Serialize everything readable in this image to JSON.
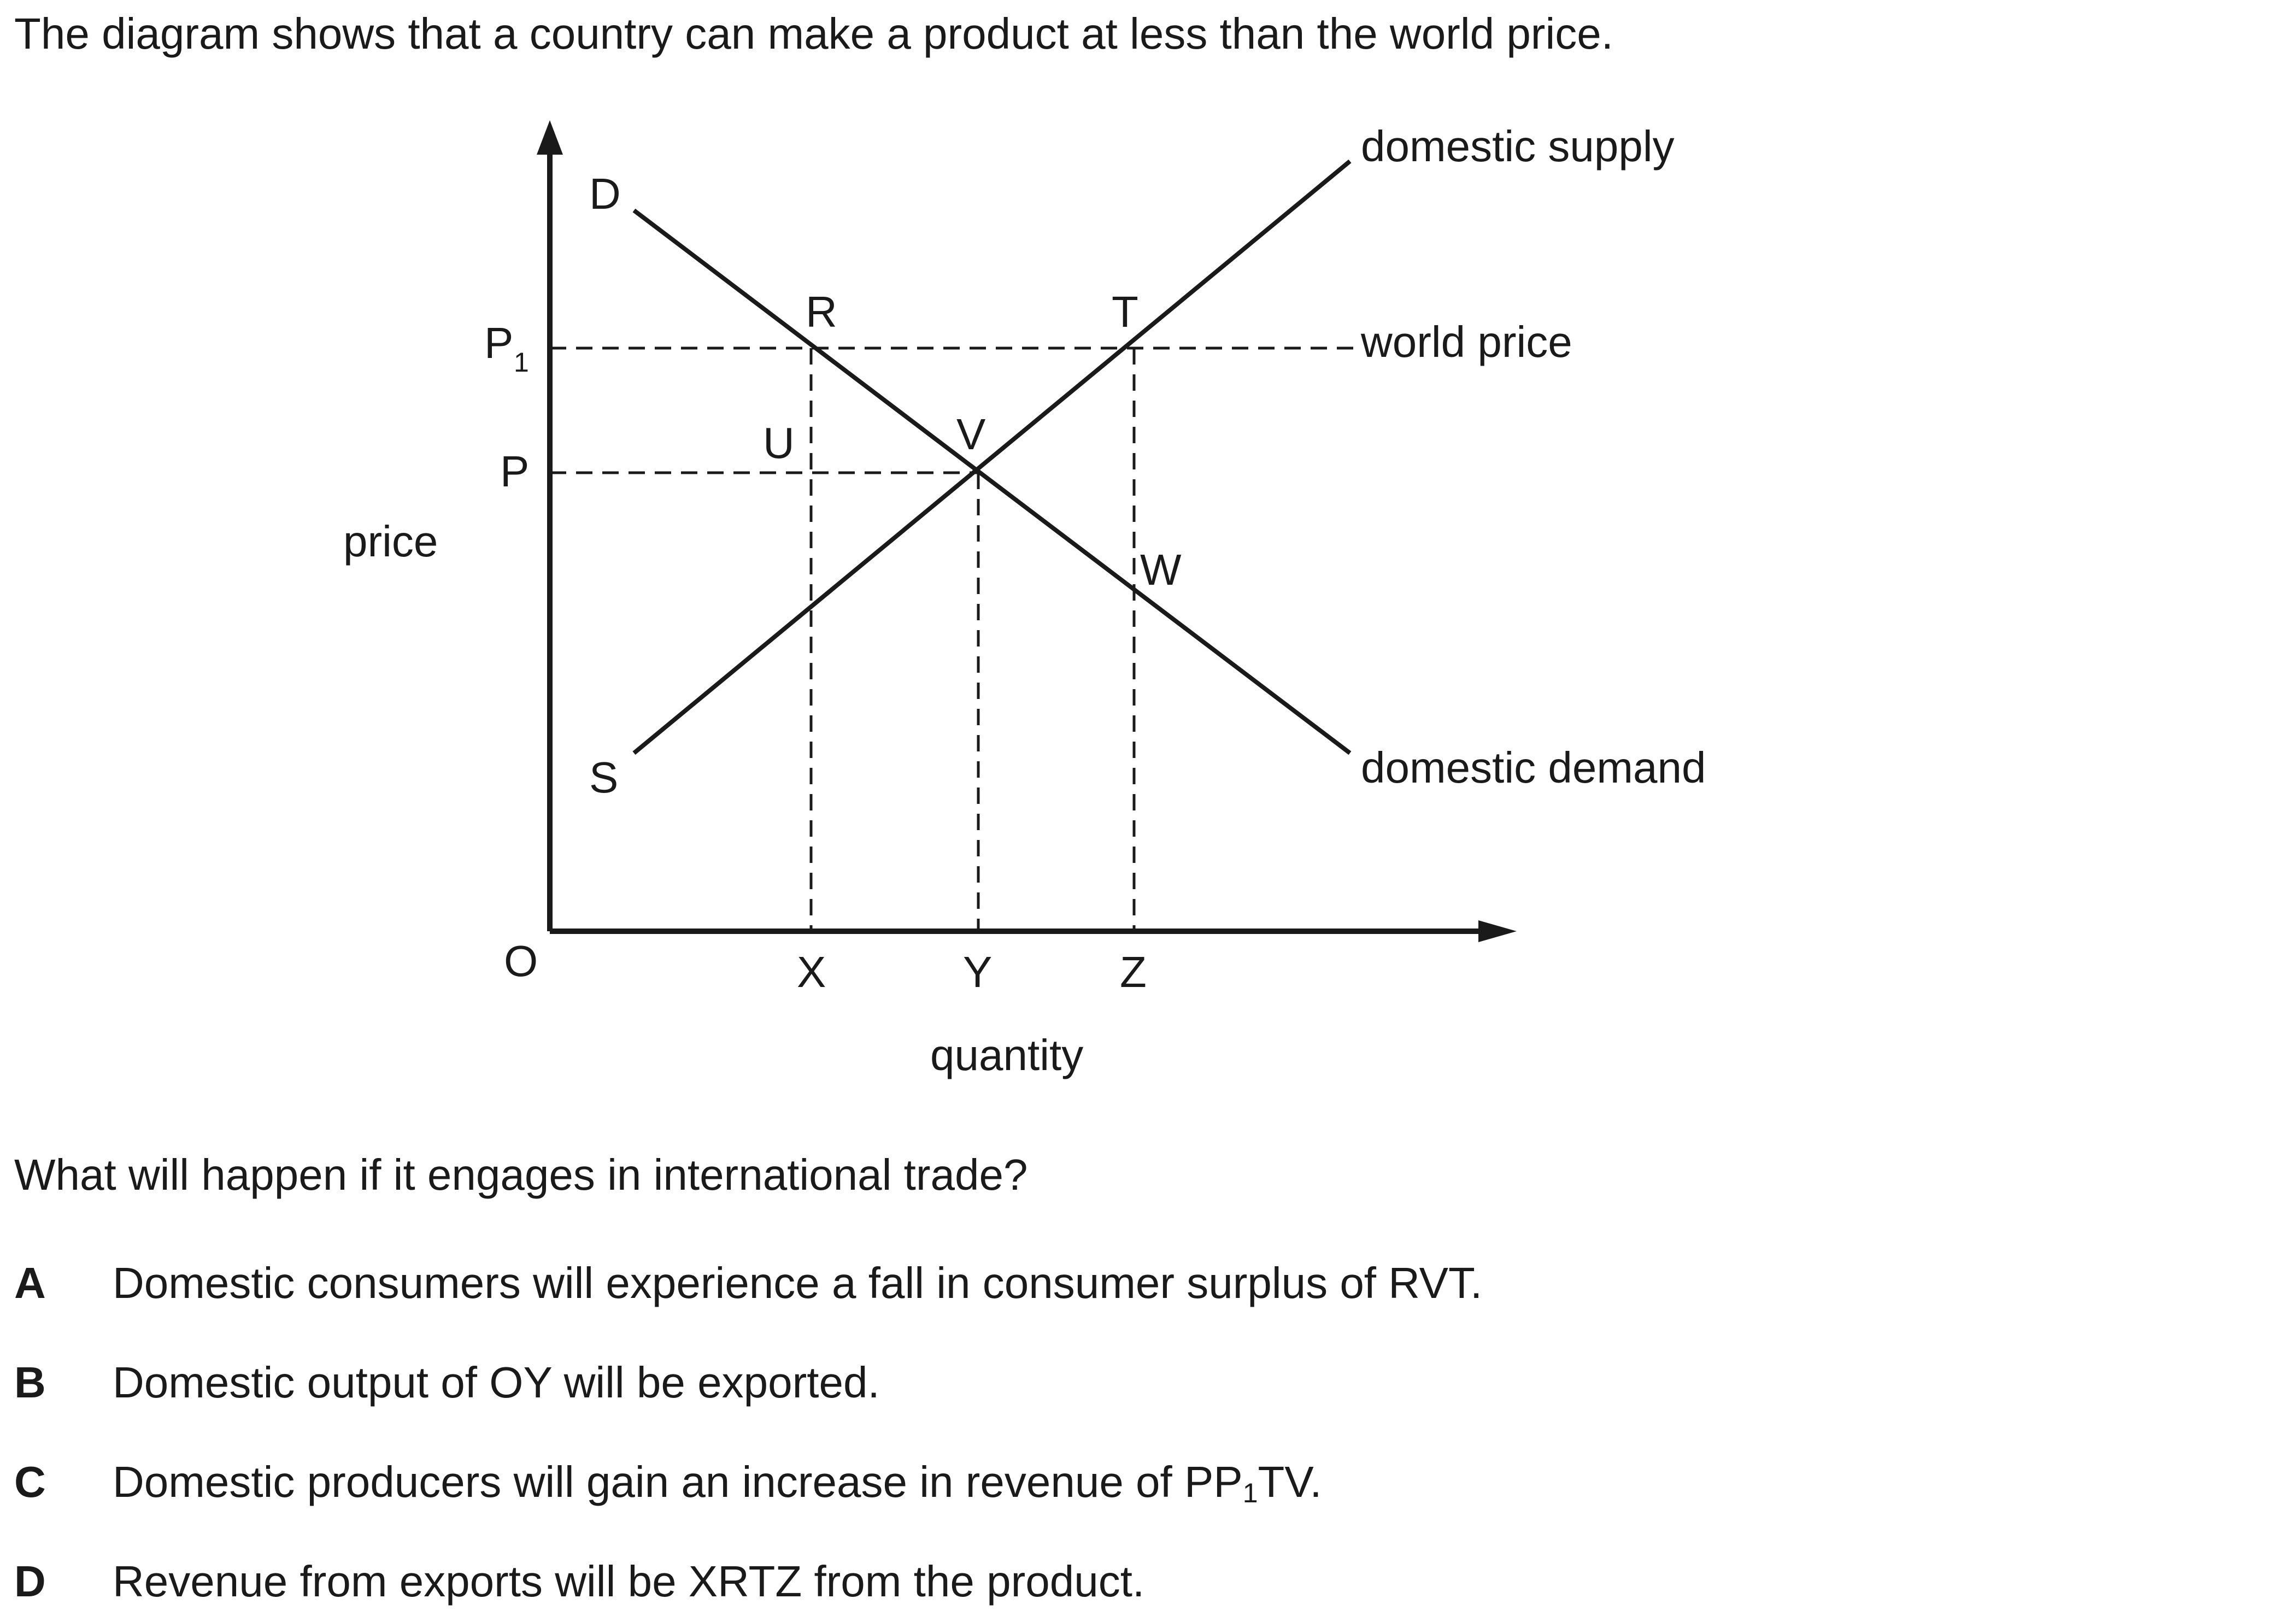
{
  "intro": "The diagram shows that a country can make a product at less than the world price.",
  "question": "What will happen if it engages in international trade?",
  "diagram": {
    "y_axis_label": "price",
    "x_axis_label": "quantity",
    "origin": "O",
    "price_labels": {
      "p1": "P",
      "p1_sub": "1",
      "p": "P"
    },
    "quantity_labels": {
      "x": "X",
      "y": "Y",
      "z": "Z"
    },
    "curve_ends": {
      "demand_start": "D",
      "supply_start": "S"
    },
    "curve_names": {
      "supply": "domestic supply",
      "demand": "domestic demand",
      "world_price": "world price"
    },
    "points": {
      "r": "R",
      "t": "T",
      "u": "U",
      "v": "V",
      "w": "W"
    }
  },
  "options": [
    {
      "letter": "A",
      "parts": [
        "Domestic consumers will experience a fall in consumer surplus of RVT."
      ]
    },
    {
      "letter": "B",
      "parts": [
        "Domestic output of OY will be exported."
      ]
    },
    {
      "letter": "C",
      "parts": [
        "Domestic producers will gain an increase in revenue of PP",
        "1",
        "TV."
      ]
    },
    {
      "letter": "D",
      "parts": [
        "Revenue from exports will be XRTZ from the product."
      ]
    }
  ]
}
